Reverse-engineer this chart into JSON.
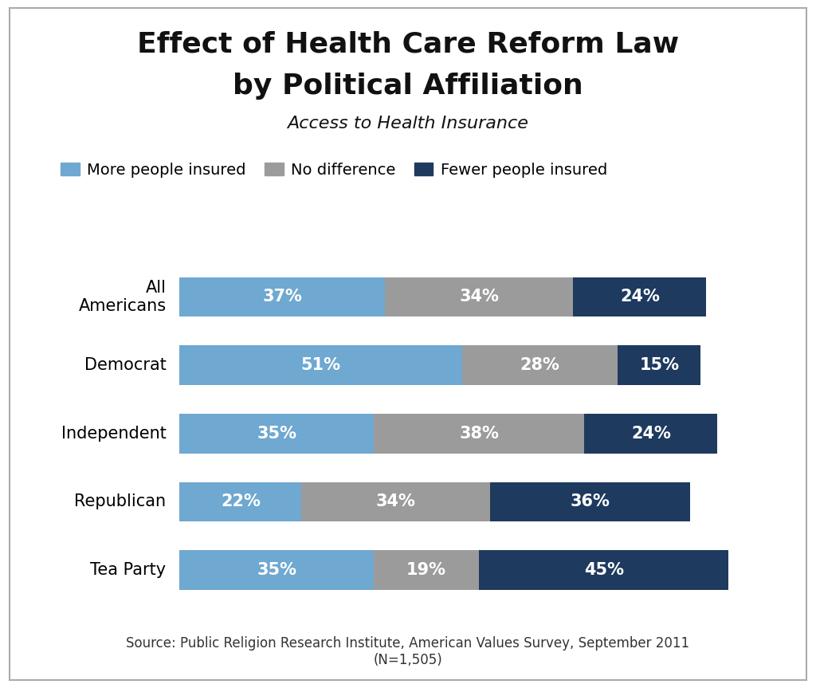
{
  "title_line1": "Effect of Health Care Reform Law",
  "title_line2": "by Political Affiliation",
  "subtitle": "Access to Health Insurance",
  "categories": [
    "All\nAmericans",
    "Democrat",
    "Independent",
    "Republican",
    "Tea Party"
  ],
  "more_insured": [
    37,
    51,
    35,
    22,
    35
  ],
  "no_difference": [
    34,
    28,
    38,
    34,
    19
  ],
  "fewer_insured": [
    24,
    15,
    24,
    36,
    45
  ],
  "color_more": "#6fa8d0",
  "color_none": "#9b9b9b",
  "color_fewer": "#1e3a5f",
  "legend_labels": [
    "More people insured",
    "No difference",
    "Fewer people insured"
  ],
  "source_text": "Source: Public Religion Research Institute, American Values Survey, September 2011\n(N=1,505)",
  "background_color": "#ffffff",
  "bar_text_color": "#ffffff",
  "bar_text_fontsize": 15,
  "title_fontsize": 26,
  "subtitle_fontsize": 16,
  "legend_fontsize": 14,
  "source_fontsize": 12,
  "ytick_fontsize": 15,
  "border_color": "#aaaaaa"
}
